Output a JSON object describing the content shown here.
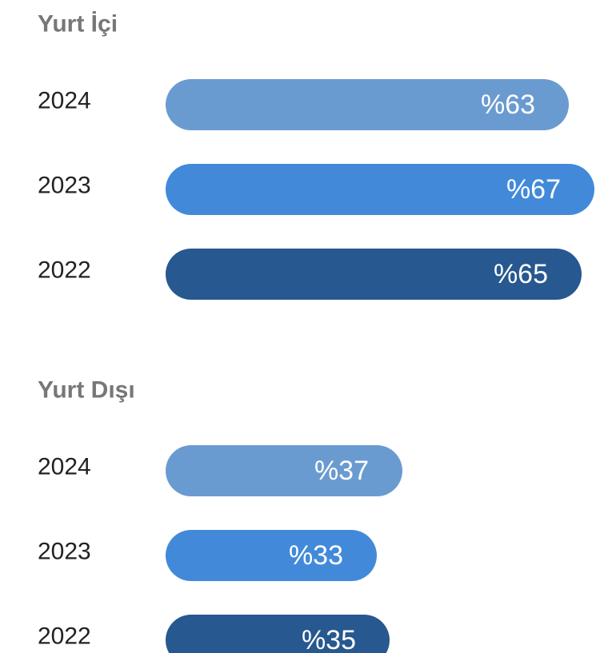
{
  "chart_data": [
    {
      "type": "bar",
      "title": "Yurt İçi",
      "categories": [
        "2024",
        "2023",
        "2022"
      ],
      "values": [
        63,
        67,
        65
      ],
      "value_labels": [
        "%63",
        "%67",
        "%65"
      ],
      "colors": [
        "#6a9bd0",
        "#428ad9",
        "#27588f"
      ]
    },
    {
      "type": "bar",
      "title": "Yurt Dışı",
      "categories": [
        "2024",
        "2023",
        "2022"
      ],
      "values": [
        37,
        33,
        35
      ],
      "value_labels": [
        "%37",
        "%33",
        "%35"
      ],
      "colors": [
        "#6a9bd0",
        "#428ad9",
        "#27588f"
      ]
    }
  ]
}
